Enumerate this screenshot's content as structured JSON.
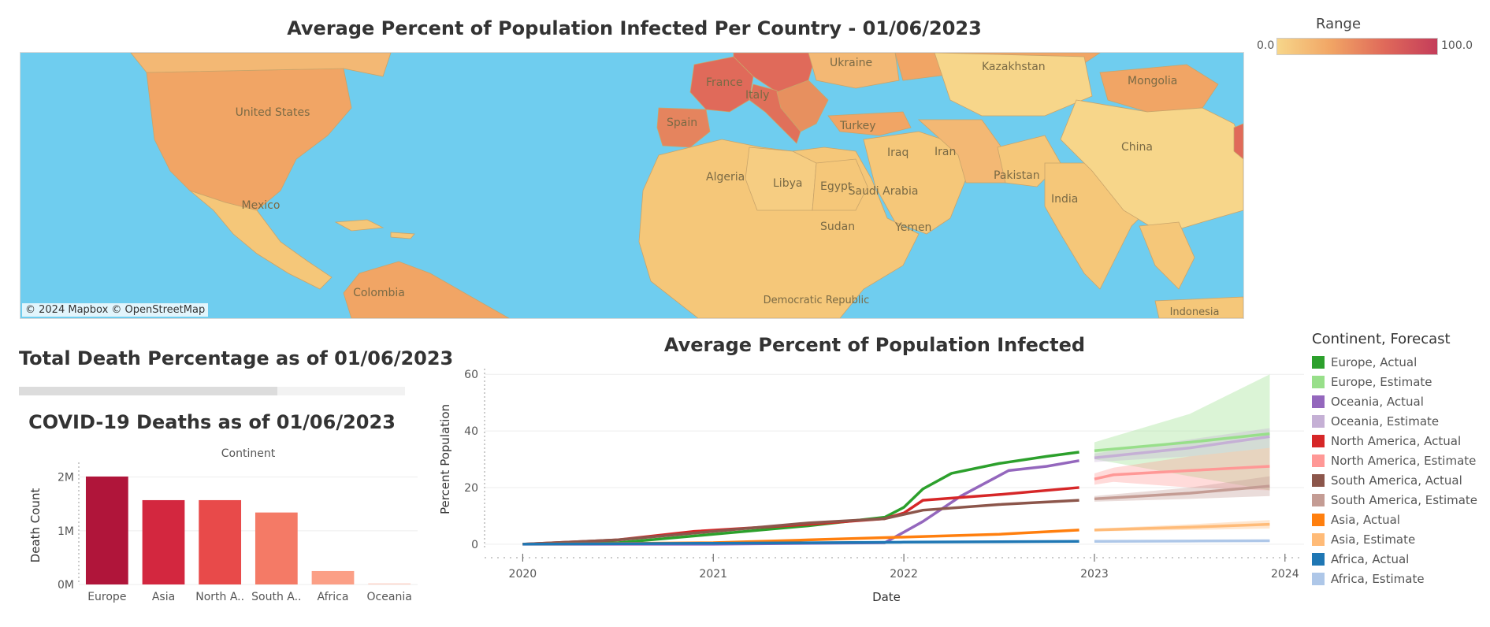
{
  "map": {
    "title": "Average Percent of Population Infected Per Country - 01/06/2023",
    "attribution": "© 2024 Mapbox  © OpenStreetMap",
    "country_labels": [
      "United States",
      "Mexico",
      "Colombia",
      "France",
      "Spain",
      "Italy",
      "Ukraine",
      "Kazakhstan",
      "Mongolia",
      "Turkey",
      "Iraq",
      "Iran",
      "Algeria",
      "Libya",
      "Egypt",
      "Saudi Arabia",
      "Pakistan",
      "India",
      "China",
      "Sudan",
      "Yemen",
      "Democratic Republic",
      "Indonesia"
    ],
    "colors": {
      "water": "#6fcdef",
      "low": "#f7d68a",
      "mid": "#f1a565",
      "high": "#e06a5a"
    },
    "legend": {
      "title": "Range",
      "min": "0.0",
      "max": "100.0"
    }
  },
  "death_percentage": {
    "title": "Total Death Percentage as of 01/06/2023",
    "fill_fraction": 0.67
  },
  "deaths_chart": {
    "title": "COVID-19 Deaths as of 01/06/2023"
  },
  "line_chart": {
    "title": "Average Percent of Population Infected"
  },
  "legend": {
    "title": "Continent, Forecast",
    "items": [
      {
        "label": "Europe, Actual",
        "color": "#2ca02c"
      },
      {
        "label": "Europe, Estimate",
        "color": "#98df8a"
      },
      {
        "label": "Oceania, Actual",
        "color": "#9467bd"
      },
      {
        "label": "Oceania, Estimate",
        "color": "#c5b0d5"
      },
      {
        "label": "North America, Actual",
        "color": "#d62728"
      },
      {
        "label": "North America, Estimate",
        "color": "#ff9896"
      },
      {
        "label": "South America, Actual",
        "color": "#8c564b"
      },
      {
        "label": "South America, Estimate",
        "color": "#c49c94"
      },
      {
        "label": "Asia, Actual",
        "color": "#ff7f0e"
      },
      {
        "label": "Asia, Estimate",
        "color": "#ffbb78"
      },
      {
        "label": "Africa, Actual",
        "color": "#1f77b4"
      },
      {
        "label": "Africa, Estimate",
        "color": "#aec7e8"
      }
    ]
  },
  "chart_data": [
    {
      "type": "bar",
      "title": "COVID-19 Deaths as of 01/06/2023",
      "column_header": "Continent",
      "ylabel": "Death Count",
      "categories": [
        "Europe",
        "Asia",
        "North A..",
        "South A..",
        "Africa",
        "Oceania"
      ],
      "values": [
        2010000,
        1570000,
        1570000,
        1340000,
        250000,
        20000
      ],
      "colors": [
        "#b0153a",
        "#d3273f",
        "#e84a4a",
        "#f47a66",
        "#fb9f86",
        "#fcd0c4"
      ],
      "ylim": [
        0,
        2200000
      ],
      "yticks": [
        {
          "value": 0,
          "label": "0M"
        },
        {
          "value": 1000000,
          "label": "1M"
        },
        {
          "value": 2000000,
          "label": "2M"
        }
      ]
    },
    {
      "type": "line",
      "title": "Average Percent of Population Infected",
      "xlabel": "Date",
      "ylabel": "Percent Population",
      "xlim": [
        2019.8,
        2024.1
      ],
      "ylim": [
        -2,
        62
      ],
      "xticks": [
        "2020",
        "2021",
        "2022",
        "2023",
        "2024"
      ],
      "yticks": [
        0,
        20,
        40,
        60
      ],
      "grid": true,
      "series": [
        {
          "name": "Europe, Actual",
          "color": "#2ca02c",
          "x": [
            2020.0,
            2020.5,
            2021.0,
            2021.5,
            2021.9,
            2022.0,
            2022.1,
            2022.25,
            2022.5,
            2022.75,
            2022.92
          ],
          "y": [
            0,
            0.5,
            3.5,
            6.5,
            9.5,
            13,
            19.5,
            25,
            28.5,
            31,
            32.5
          ]
        },
        {
          "name": "Europe, Estimate",
          "color": "#98df8a",
          "estimate": true,
          "x": [
            2023.0,
            2023.5,
            2023.92
          ],
          "y": [
            33,
            36,
            39
          ],
          "band_low": [
            30,
            24,
            19
          ],
          "band_high": [
            36,
            46,
            60
          ]
        },
        {
          "name": "Oceania, Actual",
          "color": "#9467bd",
          "x": [
            2020.0,
            2021.0,
            2021.9,
            2022.1,
            2022.3,
            2022.55,
            2022.75,
            2022.92
          ],
          "y": [
            0,
            0,
            0.5,
            8,
            17,
            26,
            27.5,
            29.5
          ]
        },
        {
          "name": "Oceania, Estimate",
          "color": "#c5b0d5",
          "estimate": true,
          "x": [
            2023.0,
            2023.5,
            2023.92
          ],
          "y": [
            30.5,
            34,
            38
          ],
          "band_low": [
            29,
            31,
            34
          ],
          "band_high": [
            32,
            37,
            41
          ]
        },
        {
          "name": "North America, Actual",
          "color": "#d62728",
          "x": [
            2020.0,
            2020.5,
            2020.9,
            2021.5,
            2021.9,
            2022.0,
            2022.1,
            2022.5,
            2022.92
          ],
          "y": [
            0,
            1.5,
            4.5,
            7,
            9,
            11,
            15.5,
            17.5,
            20
          ]
        },
        {
          "name": "North America, Estimate",
          "color": "#ff9896",
          "estimate": true,
          "x": [
            2023.0,
            2023.1,
            2023.5,
            2023.92
          ],
          "y": [
            23,
            24.5,
            26,
            27.5
          ],
          "band_low": [
            21,
            22,
            20,
            19
          ],
          "band_high": [
            25,
            27,
            31,
            34
          ]
        },
        {
          "name": "South America, Actual",
          "color": "#8c564b",
          "x": [
            2020.0,
            2020.5,
            2021.0,
            2021.5,
            2021.9,
            2022.1,
            2022.5,
            2022.92
          ],
          "y": [
            0,
            1.5,
            4.5,
            7.5,
            9,
            12,
            14,
            15.5
          ]
        },
        {
          "name": "South America, Estimate",
          "color": "#c49c94",
          "estimate": true,
          "x": [
            2023.0,
            2023.5,
            2023.92
          ],
          "y": [
            16,
            18,
            20.5
          ],
          "band_low": [
            15,
            16,
            17
          ],
          "band_high": [
            17,
            20,
            24
          ]
        },
        {
          "name": "Asia, Actual",
          "color": "#ff7f0e",
          "x": [
            2020.0,
            2021.0,
            2021.5,
            2022.0,
            2022.5,
            2022.92
          ],
          "y": [
            0,
            0.5,
            1.5,
            2.5,
            3.5,
            5
          ]
        },
        {
          "name": "Asia, Estimate",
          "color": "#ffbb78",
          "estimate": true,
          "x": [
            2023.0,
            2023.5,
            2023.92
          ],
          "y": [
            5,
            6,
            7
          ],
          "band_low": [
            4.5,
            5,
            5.5
          ],
          "band_high": [
            5.5,
            7,
            8.5
          ]
        },
        {
          "name": "Africa, Actual",
          "color": "#1f77b4",
          "x": [
            2020.0,
            2021.0,
            2022.0,
            2022.92
          ],
          "y": [
            0,
            0.3,
            0.7,
            1
          ]
        },
        {
          "name": "Africa, Estimate",
          "color": "#aec7e8",
          "estimate": true,
          "x": [
            2023.0,
            2023.5,
            2023.92
          ],
          "y": [
            1,
            1.1,
            1.2
          ],
          "band_low": [
            0.8,
            0.8,
            0.8
          ],
          "band_high": [
            1.2,
            1.4,
            1.6
          ]
        }
      ]
    }
  ]
}
